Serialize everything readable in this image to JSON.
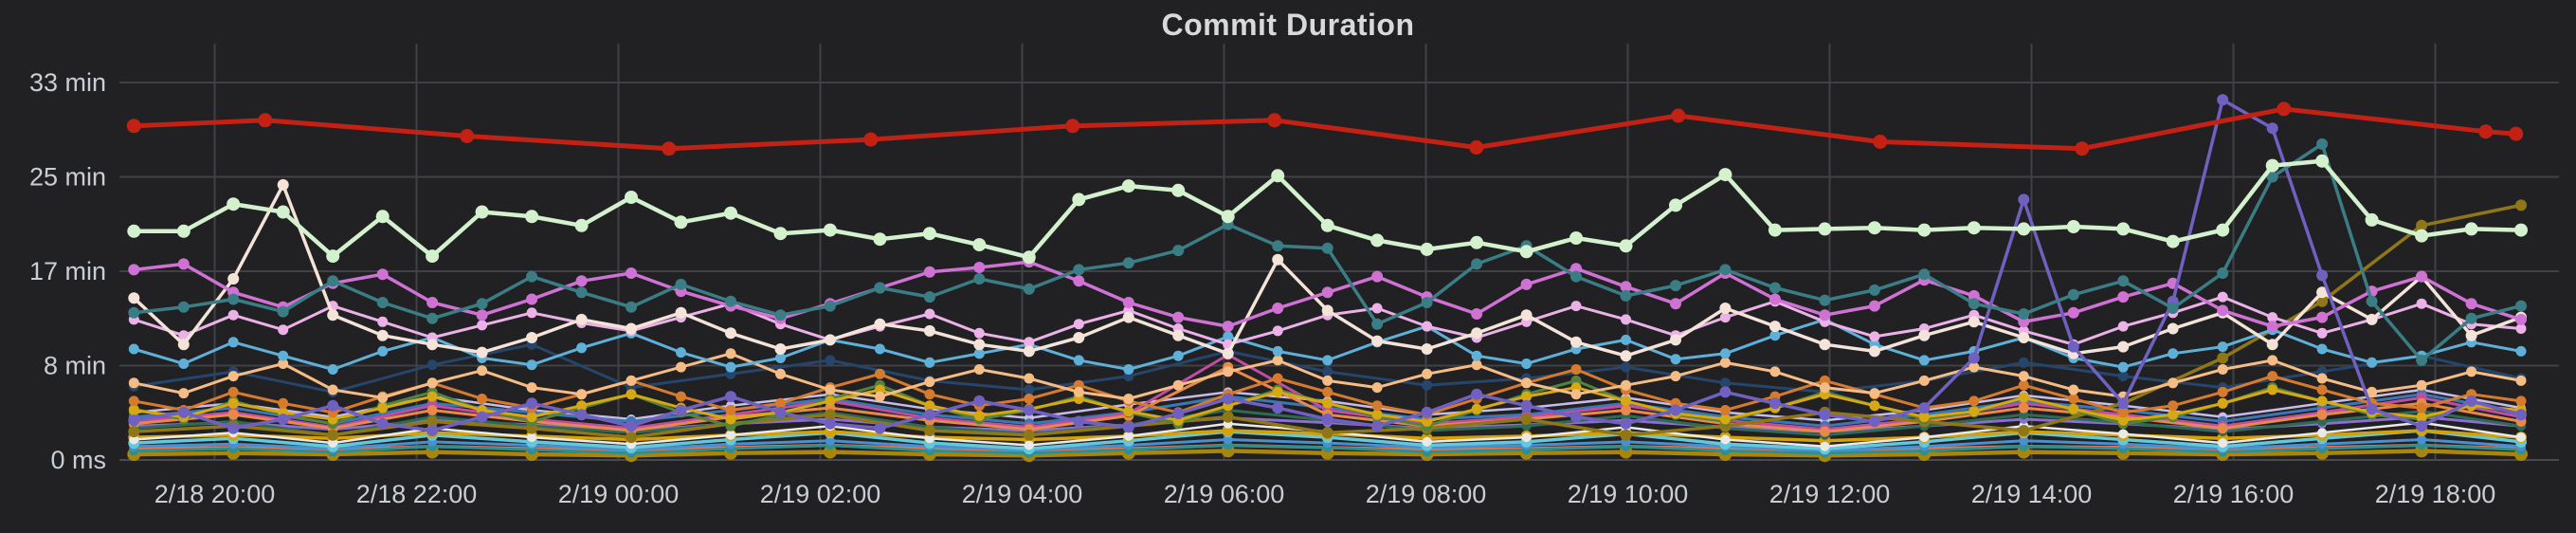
{
  "title": "Commit Duration",
  "colors": {
    "background": "#212124",
    "grid": "#404146",
    "axis_zero_line": "#4a4b4f",
    "tick_text": "#c9ced4",
    "title_text": "#d8d9da"
  },
  "y_axis": {
    "ticks": [
      {
        "label": "0 ms",
        "minutes": 0
      },
      {
        "label": "8 min",
        "minutes": 8.333
      },
      {
        "label": "17 min",
        "minutes": 16.667
      },
      {
        "label": "25 min",
        "minutes": 25
      },
      {
        "label": "33 min",
        "minutes": 33.333
      }
    ]
  },
  "x_axis": {
    "labels": [
      "2/18 20:00",
      "2/18 22:00",
      "2/19 00:00",
      "2/19 02:00",
      "2/19 04:00",
      "2/19 06:00",
      "2/19 08:00",
      "2/19 10:00",
      "2/19 12:00",
      "2/19 14:00",
      "2/19 16:00",
      "2/19 18:00"
    ]
  },
  "chart_data": {
    "type": "line",
    "title": "Commit Duration",
    "x_range": [
      "2/18 19:00",
      "2/19 19:00"
    ],
    "x_unit": "time",
    "y_unit": "minutes",
    "ylim_minutes": [
      0,
      33.6
    ],
    "grid": true,
    "legend": false,
    "series": [
      {
        "name": "flat-gold-bottom",
        "color": "#a8850b",
        "lw": 4.5,
        "r": 7,
        "values": [
          0.5,
          0.6,
          0.5,
          0.7,
          0.5,
          0.4,
          0.6,
          0.7,
          0.5,
          0.4,
          0.6,
          0.8,
          0.6,
          0.5,
          0.6,
          0.7,
          0.5,
          0.4,
          0.5,
          0.7,
          0.6,
          0.5,
          0.6,
          0.8,
          0.5
        ]
      },
      {
        "name": "flat-salmon",
        "color": "#e07856",
        "lw": 3.5,
        "r": 5,
        "values": [
          1.0,
          1.1,
          0.9,
          1.2,
          1.0,
          0.8,
          1.1,
          1.3,
          1.0,
          0.8,
          1.0,
          1.3,
          1.1,
          0.9,
          1.0,
          1.2,
          1.0,
          0.8,
          1.0,
          1.2,
          1.1,
          0.9,
          1.1,
          1.3,
          1.0
        ]
      },
      {
        "name": "flat-teal",
        "color": "#2f8e8e",
        "lw": 3,
        "r": 5,
        "values": [
          0.8,
          1.0,
          0.7,
          1.2,
          0.9,
          0.6,
          1.0,
          1.3,
          0.8,
          0.6,
          0.9,
          1.3,
          1.1,
          0.7,
          0.9,
          1.2,
          0.8,
          0.6,
          0.8,
          1.2,
          1.0,
          0.7,
          1.0,
          1.3,
          0.9
        ]
      },
      {
        "name": "flat-blue",
        "color": "#4a8fd0",
        "lw": 3,
        "r": 5,
        "values": [
          1.2,
          1.4,
          1.0,
          1.6,
          1.3,
          0.9,
          1.4,
          1.7,
          1.2,
          0.9,
          1.3,
          1.8,
          1.5,
          1.1,
          1.3,
          1.6,
          1.2,
          0.8,
          1.2,
          1.7,
          1.4,
          1.0,
          1.4,
          1.8,
          1.2
        ]
      },
      {
        "name": "flat-cyan",
        "color": "#62c8dc",
        "lw": 3.5,
        "r": 6,
        "values": [
          1.5,
          1.9,
          1.2,
          2.2,
          1.6,
          1.1,
          1.8,
          2.4,
          1.5,
          1.0,
          1.7,
          2.5,
          2.0,
          1.3,
          1.6,
          2.3,
          1.4,
          1.0,
          1.6,
          2.4,
          1.8,
          1.2,
          1.9,
          2.6,
          1.6
        ]
      },
      {
        "name": "flat-amber",
        "color": "#d4a106",
        "lw": 3.5,
        "r": 6,
        "values": [
          2.0,
          2.2,
          1.9,
          2.4,
          2.1,
          1.8,
          2.2,
          2.5,
          2.0,
          1.8,
          2.1,
          2.6,
          2.3,
          1.9,
          2.1,
          2.4,
          2.0,
          1.7,
          2.0,
          2.5,
          2.2,
          1.9,
          2.2,
          2.6,
          2.0
        ]
      },
      {
        "name": "white",
        "color": "#e9e9e9",
        "lw": 2.5,
        "r": 5,
        "values": [
          1.8,
          2.4,
          1.5,
          2.8,
          2.0,
          1.4,
          2.2,
          3.0,
          1.9,
          1.3,
          2.1,
          3.2,
          2.5,
          1.6,
          2.0,
          2.9,
          1.8,
          1.2,
          2.0,
          3.0,
          2.3,
          1.5,
          2.4,
          3.3,
          2.0
        ]
      },
      {
        "name": "violet",
        "color": "#8a6fd1",
        "lw": 3,
        "r": 5,
        "values": [
          3.0,
          3.3,
          2.7,
          3.5,
          3.1,
          2.6,
          3.2,
          3.6,
          2.9,
          2.6,
          3.1,
          3.7,
          3.3,
          2.8,
          3.1,
          3.5,
          2.9,
          2.5,
          3.0,
          3.6,
          3.2,
          2.7,
          3.2,
          3.8,
          3.0
        ]
      },
      {
        "name": "sea-green",
        "color": "#2e6b52",
        "lw": 3,
        "r": 5,
        "values": [
          2.8,
          3.4,
          2.2,
          3.8,
          3.0,
          2.4,
          3.2,
          4.2,
          2.9,
          2.3,
          3.1,
          4.4,
          3.5,
          2.6,
          3.0,
          3.9,
          2.8,
          2.2,
          3.0,
          4.0,
          3.3,
          2.5,
          3.4,
          4.3,
          3.0
        ]
      },
      {
        "name": "lilac",
        "color": "#c9bde8",
        "lw": 2.5,
        "r": 5,
        "values": [
          4.2,
          5.0,
          3.8,
          5.6,
          4.4,
          3.6,
          4.8,
          5.8,
          4.5,
          3.7,
          4.9,
          6.0,
          5.2,
          4.0,
          4.6,
          5.5,
          4.2,
          3.5,
          4.4,
          5.7,
          4.8,
          3.8,
          5.0,
          6.2,
          4.6
        ]
      },
      {
        "name": "steel-blue",
        "color": "#3a78b3",
        "lw": 3,
        "r": 5.5,
        "values": [
          3.8,
          4.6,
          3.2,
          5.0,
          4.2,
          3.4,
          4.4,
          5.4,
          4.0,
          3.2,
          4.2,
          5.6,
          4.6,
          3.6,
          4.0,
          5.0,
          3.8,
          3.0,
          4.0,
          5.2,
          4.4,
          3.4,
          4.6,
          5.8,
          4.2
        ]
      },
      {
        "name": "magenta",
        "color": "#bf4da2",
        "lw": 3,
        "r": 5.5,
        "values": [
          3.4,
          4.2,
          2.9,
          4.8,
          3.6,
          2.8,
          4.0,
          5.2,
          3.7,
          2.9,
          4.1,
          9.3,
          4.4,
          3.2,
          3.8,
          4.8,
          3.5,
          2.7,
          3.6,
          5.0,
          4.0,
          3.0,
          4.2,
          5.5,
          3.8
        ]
      },
      {
        "name": "navy",
        "color": "#26456b",
        "lw": 3,
        "r": 5.5,
        "values": [
          6.5,
          7.8,
          6.0,
          8.4,
          10.2,
          6.4,
          7.6,
          8.8,
          7.0,
          6.2,
          7.4,
          9.6,
          7.8,
          6.6,
          7.2,
          8.2,
          6.8,
          6.0,
          7.0,
          8.6,
          7.4,
          6.4,
          7.8,
          9.2,
          7.2
        ]
      },
      {
        "name": "orange-bright",
        "color": "#e8894a",
        "lw": 3,
        "r": 5.5,
        "values": [
          3.2,
          4.0,
          2.8,
          4.4,
          3.4,
          2.6,
          3.8,
          4.6,
          3.5,
          2.7,
          3.9,
          8.2,
          4.0,
          3.0,
          3.6,
          4.4,
          3.2,
          2.5,
          3.4,
          4.6,
          3.8,
          2.8,
          4.0,
          5.0,
          3.4
        ]
      },
      {
        "name": "olive",
        "color": "#8f7718",
        "lw": 3.5,
        "r": 6,
        "values": [
          2.5,
          3.0,
          2.2,
          3.4,
          2.8,
          2.0,
          3.2,
          4.0,
          2.6,
          2.2,
          3.0,
          3.8,
          2.4,
          2.8,
          3.6,
          2.2,
          3.0,
          4.2,
          3.4,
          2.6,
          5.0,
          9.0,
          14.0,
          20.7,
          22.5
        ]
      },
      {
        "name": "forest-green",
        "color": "#55823c",
        "lw": 3,
        "r": 5.5,
        "values": [
          4.5,
          3.6,
          5.2,
          4.0,
          3.2,
          4.8,
          6.0,
          4.4,
          3.4,
          4.6,
          5.8,
          4.2,
          3.0,
          4.0,
          5.4,
          6.6,
          4.8,
          3.6,
          4.4,
          5.6,
          4.2,
          3.2,
          4.8,
          6.2,
          5.0,
          3.8,
          3.0,
          4.4,
          5.8,
          7.0,
          5.2,
          4.0,
          3.4,
          4.6,
          6.0,
          4.8,
          3.6,
          4.2,
          5.5,
          4.4,
          3.2,
          3.8,
          5.0,
          6.4,
          5.2,
          4.0,
          3.6,
          4.8,
          4.2
        ]
      },
      {
        "name": "gold",
        "color": "#d7a815",
        "lw": 3,
        "r": 5.5,
        "values": [
          4.4,
          3.8,
          5.0,
          4.2,
          3.6,
          4.6,
          5.6,
          4.4,
          3.8,
          4.8,
          5.8,
          4.6,
          3.6,
          4.2,
          5.2,
          6.2,
          4.8,
          3.9,
          4.5,
          5.4,
          4.3,
          3.5,
          4.8,
          6.0,
          5.0,
          4.0,
          3.4,
          4.5,
          5.6,
          6.4,
          5.2,
          4.1,
          3.6,
          4.6,
          5.8,
          4.8,
          3.8,
          4.3,
          5.5,
          4.5,
          3.5,
          4.0,
          5.0,
          6.2,
          5.2,
          4.2,
          3.8,
          4.8,
          4.4
        ]
      },
      {
        "name": "orange",
        "color": "#d67b2e",
        "lw": 3,
        "r": 5.5,
        "values": [
          5.2,
          4.4,
          6.0,
          5.0,
          4.2,
          5.6,
          6.8,
          5.4,
          4.6,
          5.8,
          7.0,
          5.6,
          4.4,
          5.0,
          6.4,
          7.6,
          5.8,
          4.8,
          5.4,
          6.6,
          5.2,
          4.2,
          5.8,
          7.2,
          6.0,
          4.8,
          4.0,
          5.4,
          6.8,
          8.0,
          6.2,
          5.0,
          4.4,
          5.6,
          7.0,
          5.8,
          4.6,
          5.2,
          6.6,
          5.4,
          4.2,
          4.8,
          6.0,
          7.4,
          6.2,
          5.0,
          4.6,
          5.8,
          5.2
        ]
      },
      {
        "name": "peach",
        "color": "#f5bd85",
        "lw": 3,
        "r": 5.5,
        "values": [
          6.8,
          5.9,
          7.4,
          8.5,
          6.2,
          5.5,
          6.8,
          7.9,
          6.4,
          5.8,
          7.0,
          8.2,
          9.4,
          7.6,
          6.2,
          5.6,
          6.9,
          8.0,
          7.2,
          6.0,
          5.4,
          6.6,
          7.8,
          8.8,
          7.0,
          6.4,
          7.6,
          8.4,
          6.8,
          5.8,
          6.6,
          7.4,
          8.6,
          7.8,
          6.4,
          5.9,
          7.0,
          8.2,
          7.4,
          6.2,
          5.6,
          6.8,
          8.0,
          8.8,
          7.2,
          6.0,
          6.6,
          7.8,
          7.0
        ]
      },
      {
        "name": "sky-blue",
        "color": "#5fb0d9",
        "lw": 3,
        "r": 5.5,
        "values": [
          9.8,
          8.5,
          10.4,
          9.2,
          8.0,
          9.6,
          10.8,
          9.0,
          8.4,
          9.9,
          11.2,
          9.5,
          8.2,
          9.0,
          10.6,
          9.8,
          8.6,
          9.4,
          10.2,
          8.8,
          8.0,
          9.2,
          10.9,
          9.6,
          8.8,
          10.4,
          11.8,
          9.2,
          8.5,
          9.8,
          10.6,
          8.9,
          9.4,
          11.0,
          12.4,
          10.2,
          8.8,
          9.6,
          10.8,
          9.0,
          8.2,
          9.4,
          10.0,
          11.5,
          9.8,
          8.6,
          9.2,
          10.4,
          9.6
        ]
      },
      {
        "name": "lavender-pink",
        "color": "#ecb2e8",
        "lw": 3,
        "r": 5.5,
        "values": [
          12.4,
          11.0,
          12.8,
          11.5,
          13.6,
          12.2,
          10.8,
          11.9,
          13.0,
          12.1,
          11.4,
          12.6,
          13.8,
          12.0,
          10.6,
          11.8,
          12.9,
          11.2,
          10.4,
          12.0,
          13.2,
          11.6,
          10.2,
          11.4,
          12.8,
          13.4,
          11.8,
          10.8,
          12.2,
          13.6,
          12.4,
          11.0,
          12.6,
          14.0,
          12.2,
          10.9,
          11.6,
          12.8,
          11.4,
          10.2,
          11.8,
          13.0,
          14.4,
          12.6,
          11.2,
          12.4,
          13.8,
          12.0,
          11.6
        ]
      },
      {
        "name": "cream",
        "color": "#f4e3d8",
        "lw": 3.5,
        "r": 6,
        "values": [
          14.3,
          10.2,
          16.0,
          24.3,
          12.8,
          11.0,
          10.2,
          9.5,
          10.8,
          12.4,
          11.6,
          13.0,
          11.2,
          9.8,
          10.6,
          12.0,
          11.4,
          10.2,
          9.6,
          10.8,
          12.6,
          11.0,
          9.4,
          17.7,
          13.2,
          10.5,
          9.8,
          11.2,
          12.8,
          10.4,
          9.2,
          10.6,
          13.4,
          11.8,
          10.2,
          9.6,
          11.0,
          12.2,
          10.8,
          9.4,
          10.0,
          11.6,
          13.0,
          10.2,
          14.8,
          12.4,
          16.2,
          11.0,
          12.6
        ]
      },
      {
        "name": "orchid",
        "color": "#cf72d4",
        "lw": 3.5,
        "r": 6,
        "values": [
          16.8,
          17.3,
          14.8,
          13.5,
          15.6,
          16.4,
          13.9,
          12.8,
          14.2,
          15.8,
          16.5,
          14.9,
          13.6,
          12.5,
          13.8,
          15.2,
          16.6,
          17.0,
          17.5,
          15.8,
          13.9,
          12.6,
          11.8,
          13.4,
          14.8,
          16.2,
          14.4,
          12.9,
          15.5,
          16.9,
          15.3,
          13.8,
          16.5,
          14.2,
          12.8,
          13.6,
          15.9,
          14.5,
          12.2,
          13.0,
          14.4,
          15.6,
          13.2,
          11.8,
          12.6,
          14.9,
          16.2,
          13.8,
          12.4
        ]
      },
      {
        "name": "slate-purple",
        "color": "#7061c0",
        "lw": 3.5,
        "r": 6,
        "values": [
          3.5,
          4.2,
          2.8,
          3.6,
          4.8,
          3.2,
          2.6,
          3.8,
          5.0,
          4.0,
          3.0,
          4.4,
          5.6,
          4.2,
          3.2,
          2.8,
          4.0,
          5.2,
          4.4,
          3.4,
          2.9,
          4.1,
          5.4,
          4.6,
          3.6,
          3.0,
          4.2,
          5.8,
          4.8,
          3.8,
          3.2,
          4.4,
          6.0,
          5.0,
          4.0,
          3.4,
          4.6,
          9.0,
          23.0,
          10.0,
          5.0,
          14.0,
          31.8,
          29.3,
          16.3,
          4.5,
          3.0,
          5.2,
          4.0
        ]
      },
      {
        "name": "dark-teal",
        "color": "#3b7d85",
        "lw": 3.5,
        "r": 6,
        "values": [
          13.0,
          13.5,
          14.2,
          13.1,
          15.8,
          13.9,
          12.5,
          13.8,
          16.2,
          14.8,
          13.5,
          15.5,
          14.0,
          12.8,
          13.6,
          15.2,
          14.4,
          16.0,
          15.1,
          16.8,
          17.4,
          18.5,
          20.8,
          18.9,
          18.7,
          12.0,
          13.9,
          17.3,
          18.9,
          16.2,
          14.5,
          15.4,
          16.8,
          15.2,
          14.1,
          15.0,
          16.4,
          13.8,
          12.9,
          14.6,
          15.8,
          13.4,
          16.5,
          25.0,
          27.9,
          14.0,
          8.8,
          12.5,
          13.6
        ]
      },
      {
        "name": "pale-mint",
        "color": "#d3f1cd",
        "lw": 4.5,
        "r": 7,
        "values": [
          20.2,
          20.2,
          22.6,
          21.9,
          18.0,
          21.5,
          18.0,
          21.9,
          21.5,
          20.7,
          23.2,
          21.0,
          21.8,
          20.0,
          20.3,
          19.5,
          20.0,
          19.0,
          17.9,
          23.0,
          24.2,
          23.8,
          21.5,
          25.1,
          20.7,
          19.4,
          18.6,
          19.2,
          18.4,
          19.6,
          18.9,
          22.5,
          25.2,
          20.3,
          20.4,
          20.5,
          20.3,
          20.5,
          20.4,
          20.6,
          20.4,
          19.3,
          20.3,
          26.0,
          26.4,
          21.2,
          19.8,
          20.4,
          20.3
        ]
      },
      {
        "name": "red",
        "color": "#c22114",
        "lw": 5,
        "r": 7.5,
        "x_hours": [
          0.2,
          1.5,
          3.5,
          5.5,
          7.5,
          9.5,
          11.5,
          13.5,
          15.5,
          17.5,
          19.5,
          21.5,
          23.5,
          23.8
        ],
        "values": [
          29.5,
          30.0,
          28.6,
          27.5,
          28.3,
          29.5,
          30.0,
          27.6,
          30.4,
          28.1,
          27.5,
          31.0,
          29.0,
          28.8
        ]
      }
    ]
  }
}
